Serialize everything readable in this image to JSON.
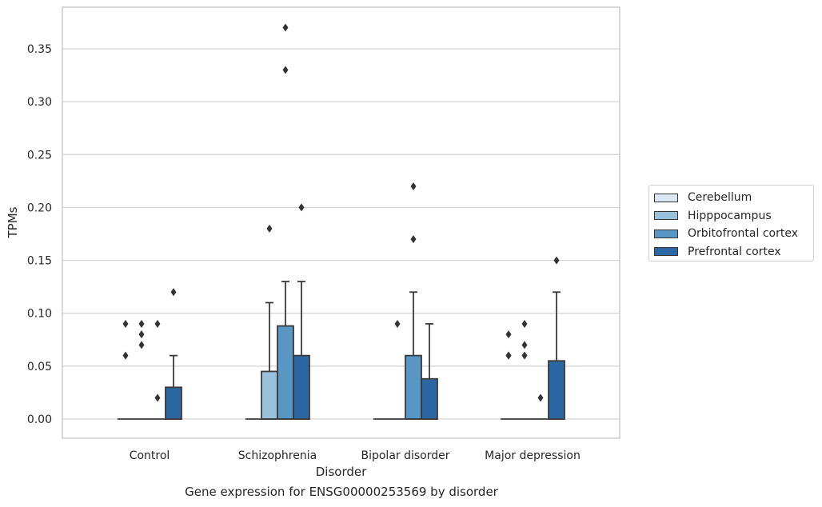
{
  "chart_data": {
    "type": "box",
    "xlabel": "Disorder",
    "ylabel": "TPMs",
    "ylim": [
      -0.018,
      0.39
    ],
    "yticks": [
      0.0,
      0.05,
      0.1,
      0.15,
      0.2,
      0.25,
      0.3,
      0.35
    ],
    "ytick_labels": [
      "0.00",
      "0.05",
      "0.10",
      "0.15",
      "0.20",
      "0.25",
      "0.30",
      "0.35"
    ],
    "grid": "horizontal",
    "legend_position": "outside-right",
    "categories": [
      "Control",
      "Schizophrenia",
      "Bipolar disorder",
      "Major depression"
    ],
    "series": [
      {
        "name": "Cerebellum",
        "color": "#dbe8f4",
        "boxes": [
          {
            "q1": 0.0,
            "median": 0.0,
            "q3": 0.0,
            "whisker_low": 0.0,
            "whisker_high": 0.0,
            "outliers": [
              0.06,
              0.09
            ]
          },
          {
            "q1": 0.0,
            "median": 0.0,
            "q3": 0.0,
            "whisker_low": 0.0,
            "whisker_high": 0.0,
            "outliers": []
          },
          {
            "q1": 0.0,
            "median": 0.0,
            "q3": 0.0,
            "whisker_low": 0.0,
            "whisker_high": 0.0,
            "outliers": []
          },
          {
            "q1": 0.0,
            "median": 0.0,
            "q3": 0.0,
            "whisker_low": 0.0,
            "whisker_high": 0.0,
            "outliers": [
              0.06,
              0.06,
              0.08
            ]
          }
        ]
      },
      {
        "name": "Hipppocampus",
        "color": "#9ac1db",
        "boxes": [
          {
            "q1": 0.0,
            "median": 0.0,
            "q3": 0.0,
            "whisker_low": 0.0,
            "whisker_high": 0.0,
            "outliers": [
              0.07,
              0.08,
              0.09
            ]
          },
          {
            "q1": 0.0,
            "median": 0.0,
            "q3": 0.045,
            "whisker_low": 0.0,
            "whisker_high": 0.11,
            "outliers": [
              0.18
            ]
          },
          {
            "q1": 0.0,
            "median": 0.0,
            "q3": 0.0,
            "whisker_low": 0.0,
            "whisker_high": 0.0,
            "outliers": [
              0.09
            ]
          },
          {
            "q1": 0.0,
            "median": 0.0,
            "q3": 0.0,
            "whisker_low": 0.0,
            "whisker_high": 0.0,
            "outliers": [
              0.06,
              0.07,
              0.09
            ]
          }
        ]
      },
      {
        "name": "Orbitofrontal cortex",
        "color": "#5896c4",
        "boxes": [
          {
            "q1": 0.0,
            "median": 0.0,
            "q3": 0.0,
            "whisker_low": 0.0,
            "whisker_high": 0.0,
            "outliers": [
              0.02,
              0.09
            ]
          },
          {
            "q1": 0.0,
            "median": 0.0,
            "q3": 0.088,
            "whisker_low": 0.0,
            "whisker_high": 0.13,
            "outliers": [
              0.33,
              0.37
            ]
          },
          {
            "q1": 0.0,
            "median": 0.0,
            "q3": 0.06,
            "whisker_low": 0.0,
            "whisker_high": 0.12,
            "outliers": [
              0.17,
              0.22
            ]
          },
          {
            "q1": 0.0,
            "median": 0.0,
            "q3": 0.0,
            "whisker_low": 0.0,
            "whisker_high": 0.0,
            "outliers": [
              0.02
            ]
          }
        ]
      },
      {
        "name": "Prefrontal cortex",
        "color": "#2a67a3",
        "boxes": [
          {
            "q1": 0.0,
            "median": 0.0,
            "q3": 0.03,
            "whisker_low": 0.0,
            "whisker_high": 0.06,
            "outliers": [
              0.12
            ]
          },
          {
            "q1": 0.0,
            "median": 0.0,
            "q3": 0.06,
            "whisker_low": 0.0,
            "whisker_high": 0.13,
            "outliers": [
              0.2
            ]
          },
          {
            "q1": 0.0,
            "median": 0.0,
            "q3": 0.038,
            "whisker_low": 0.0,
            "whisker_high": 0.09,
            "outliers": []
          },
          {
            "q1": 0.0,
            "median": 0.0,
            "q3": 0.055,
            "whisker_low": 0.0,
            "whisker_high": 0.12,
            "outliers": [
              0.15
            ]
          }
        ]
      }
    ]
  },
  "caption": "Gene expression for ENSG00000253569 by disorder",
  "colors": {
    "grid": "#d3d3d3",
    "axis_frame": "#cccccc",
    "box_edge": "#3a3a3a",
    "text": "#262626",
    "outlier": "#333333"
  }
}
